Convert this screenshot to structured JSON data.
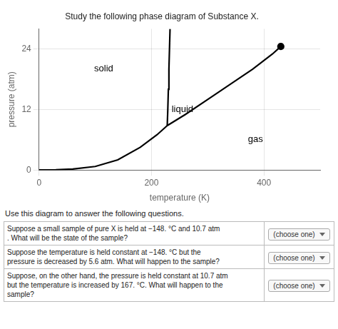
{
  "chart_data": {
    "type": "line",
    "title": "Study the following phase diagram of Substance X.",
    "subtitle": "Use this diagram to answer the following questions.",
    "xlabel": "temperature (K)",
    "ylabel": "pressure (atm)",
    "xlim": [
      0,
      500
    ],
    "ylim": [
      0,
      28
    ],
    "xticks": [
      0,
      200,
      400
    ],
    "yticks": [
      0,
      12,
      24
    ],
    "grid": true,
    "series": [
      {
        "type": "line",
        "line_style": "solid",
        "color": "#000000",
        "x": [
          0,
          30,
          60,
          100,
          140,
          180,
          210,
          228
        ],
        "values": [
          0,
          0.05,
          0.2,
          0.7,
          2.0,
          4.5,
          7.0,
          8.8
        ]
      },
      {
        "type": "line",
        "line_style": "solid",
        "color": "#000000",
        "x": [
          228,
          229,
          230,
          231,
          232,
          233
        ],
        "values": [
          8.8,
          12,
          16,
          20,
          24,
          28
        ]
      },
      {
        "type": "line",
        "line_style": "solid",
        "color": "#000000",
        "x": [
          228,
          260,
          300,
          340,
          380,
          415,
          430
        ],
        "values": [
          8.8,
          11,
          14,
          17,
          20,
          23,
          24.5
        ]
      },
      {
        "type": "scatter",
        "marker": "circle",
        "color": "#000000",
        "x": [
          430
        ],
        "values": [
          24.5
        ]
      }
    ],
    "annotations": [
      {
        "text": "solid",
        "x": 115,
        "y": 20
      },
      {
        "text": "liquid",
        "x": 255,
        "y": 12
      },
      {
        "text": "gas",
        "x": 385,
        "y": 6
      }
    ],
    "questions": [
      {
        "lines": [
          "Suppose a small sample of pure X is held at −148. °C and 10.7 atm",
          ". What will be the state of the sample?"
        ],
        "prompt": "(choose one)"
      },
      {
        "lines": [
          "Suppose the temperature is held constant at −148. °C but the",
          "pressure is decreased by 5.6 atm. What will happen to the sample?"
        ],
        "prompt": "(choose one)"
      },
      {
        "lines": [
          "Suppose, on the other hand, the pressure is held constant at 10.7 atm",
          "but the temperature is increased by 167. °C. What will happen to the",
          "sample?"
        ],
        "prompt": "(choose one)"
      }
    ]
  }
}
